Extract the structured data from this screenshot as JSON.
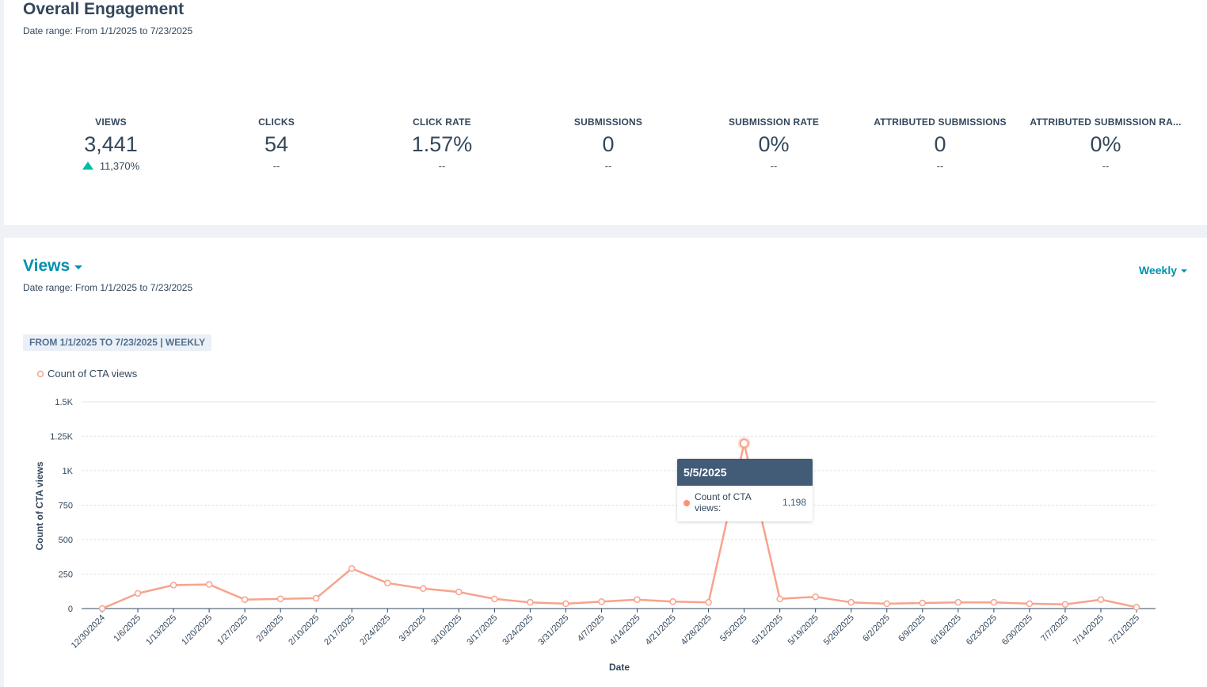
{
  "engagement": {
    "title": "Overall Engagement",
    "date_range": "Date range: From 1/1/2025 to 7/23/2025",
    "kpis": [
      {
        "label": "VIEWS",
        "value": "3,441",
        "change": "11,370%",
        "trend": "up"
      },
      {
        "label": "CLICKS",
        "value": "54",
        "change": "--"
      },
      {
        "label": "CLICK RATE",
        "value": "1.57%",
        "change": "--"
      },
      {
        "label": "SUBMISSIONS",
        "value": "0",
        "change": "--"
      },
      {
        "label": "SUBMISSION RATE",
        "value": "0%",
        "change": "--"
      },
      {
        "label": "ATTRIBUTED SUBMISSIONS",
        "value": "0",
        "change": "--"
      },
      {
        "label": "ATTRIBUTED SUBMISSION RA...",
        "value": "0%",
        "change": "--"
      }
    ]
  },
  "views_card": {
    "title": "Views",
    "date_range": "Date range: From 1/1/2025 to 7/23/2025",
    "interval_label": "Weekly",
    "filter_tag": "FROM 1/1/2025 TO 7/23/2025 | WEEKLY"
  },
  "colors": {
    "series": "#f8a38d",
    "accent": "#0091ae",
    "trend_up": "#00bda5",
    "tooltip_header": "#425b76"
  },
  "tooltip": {
    "date": "5/5/2025",
    "label": "Count of CTA views:",
    "value": "1,198"
  },
  "chart_data": {
    "type": "line",
    "xlabel": "Date",
    "ylabel": "Count of CTA views",
    "ylim": [
      0,
      1500
    ],
    "y_ticks": [
      0,
      250,
      500,
      750,
      1000,
      1250,
      1500
    ],
    "y_tick_labels": [
      "0",
      "250",
      "500",
      "750",
      "1K",
      "1.25K",
      "1.5K"
    ],
    "grid": true,
    "legend": "top-left",
    "categories": [
      "12/30/2024",
      "1/6/2025",
      "1/13/2025",
      "1/20/2025",
      "1/27/2025",
      "2/3/2025",
      "2/10/2025",
      "2/17/2025",
      "2/24/2025",
      "3/3/2025",
      "3/10/2025",
      "3/17/2025",
      "3/24/2025",
      "3/31/2025",
      "4/7/2025",
      "4/14/2025",
      "4/21/2025",
      "4/28/2025",
      "5/5/2025",
      "5/12/2025",
      "5/19/2025",
      "5/26/2025",
      "6/2/2025",
      "6/9/2025",
      "6/16/2025",
      "6/23/2025",
      "6/30/2025",
      "7/7/2025",
      "7/14/2025",
      "7/21/2025"
    ],
    "series": [
      {
        "name": "Count of CTA views",
        "values": [
          0,
          110,
          170,
          175,
          65,
          70,
          75,
          290,
          185,
          145,
          120,
          70,
          45,
          35,
          50,
          65,
          50,
          45,
          1198,
          70,
          85,
          45,
          35,
          40,
          45,
          45,
          35,
          30,
          65,
          10
        ]
      }
    ]
  }
}
